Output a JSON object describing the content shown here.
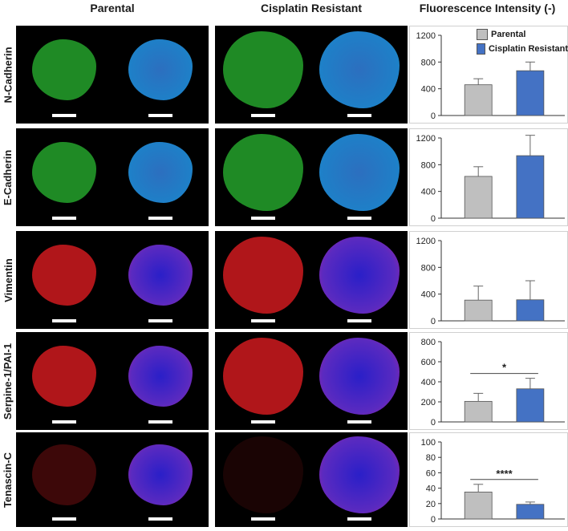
{
  "figure": {
    "headers": {
      "parental": "Parental",
      "resistant": "Cisplatin  Resistant",
      "fluorescence": "Fluorescence Intensity (-)"
    },
    "legend": [
      {
        "name": "Parental",
        "color": "#bfbfbf"
      },
      {
        "name": "Cisplatin Resistant",
        "color": "#4472c4"
      }
    ],
    "rows": [
      {
        "label": "N-Cadherin",
        "stain": "green"
      },
      {
        "label": "E-Cadherin",
        "stain": "green"
      },
      {
        "label": "Vimentin",
        "stain": "red"
      },
      {
        "label": "Serpine-1/PAI-1",
        "stain": "red"
      },
      {
        "label": "Tenascin-C",
        "stain": "red"
      }
    ]
  },
  "chart_data": [
    {
      "type": "bar",
      "categories": [
        "Parental",
        "Cisplatin Resistant"
      ],
      "values": [
        460,
        670
      ],
      "errors": [
        90,
        130
      ],
      "ylim": [
        0,
        1200
      ],
      "yticks": [
        0,
        400,
        800,
        1200
      ],
      "significance": ""
    },
    {
      "type": "bar",
      "categories": [
        "Parental",
        "Cisplatin Resistant"
      ],
      "values": [
        625,
        935
      ],
      "errors": [
        145,
        305
      ],
      "ylim": [
        0,
        1200
      ],
      "yticks": [
        0,
        400,
        800,
        1200
      ],
      "significance": ""
    },
    {
      "type": "bar",
      "categories": [
        "Parental",
        "Cisplatin Resistant"
      ],
      "values": [
        310,
        315
      ],
      "errors": [
        210,
        285
      ],
      "ylim": [
        0,
        1200
      ],
      "yticks": [
        0,
        400,
        800,
        1200
      ],
      "significance": ""
    },
    {
      "type": "bar",
      "categories": [
        "Parental",
        "Cisplatin Resistant"
      ],
      "values": [
        205,
        330
      ],
      "errors": [
        80,
        105
      ],
      "ylim": [
        0,
        800
      ],
      "yticks": [
        0,
        200,
        400,
        600,
        800
      ],
      "significance": "*"
    },
    {
      "type": "bar",
      "categories": [
        "Parental",
        "Cisplatin Resistant"
      ],
      "values": [
        35,
        19
      ],
      "errors": [
        10,
        3
      ],
      "ylim": [
        0,
        100
      ],
      "yticks": [
        0,
        20,
        40,
        60,
        80,
        100
      ],
      "significance": "****"
    }
  ]
}
